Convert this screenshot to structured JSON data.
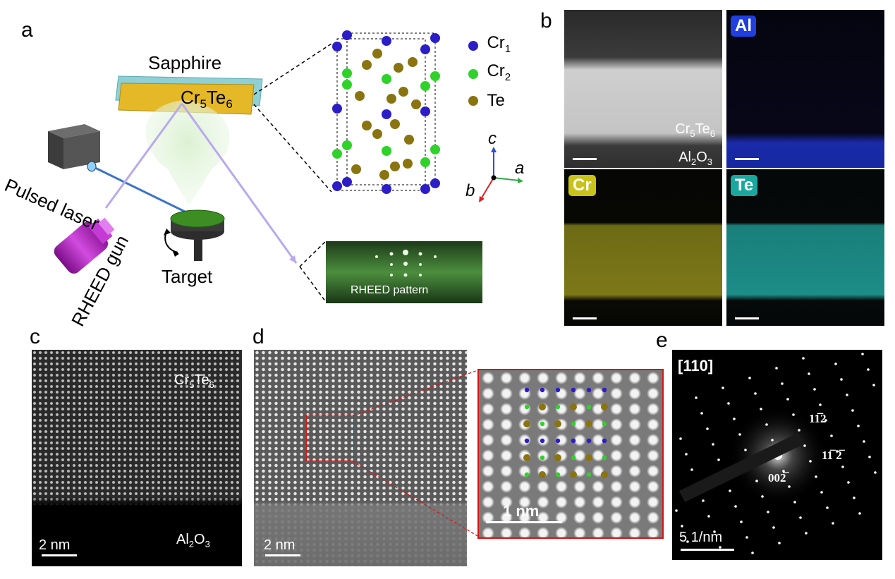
{
  "panel_labels": {
    "a": "a",
    "b": "b",
    "c": "c",
    "d": "d",
    "e": "e"
  },
  "panel_a": {
    "sapphire": "Sapphire",
    "film_main": "Cr",
    "film_sub1": "5",
    "film_mid": "Te",
    "film_sub2": "6",
    "pulsed_laser": "Pulsed laser",
    "rheed_gun": "RHEED gun",
    "target": "Target",
    "rheed_pattern": "RHEED pattern",
    "legend": [
      {
        "main": "Cr",
        "sub": "1",
        "color": "#2b1ec7"
      },
      {
        "main": "Cr",
        "sub": "2",
        "color": "#2fd22a"
      },
      {
        "main": "Te",
        "sub": "",
        "color": "#8a7410"
      }
    ],
    "axes": {
      "c": "c",
      "a": "a",
      "b": "b"
    }
  },
  "panel_b": {
    "film_main": "Cr",
    "film_sub": "5",
    "film_mid": "Te",
    "film_sub2": "6",
    "sub_main": "Al",
    "sub_sub": "2",
    "sub_mid": "O",
    "sub_sub2": "3",
    "maps": [
      {
        "label": "Al",
        "color": "#1f3fe0"
      },
      {
        "label": "Cr",
        "color": "#c8c21a"
      },
      {
        "label": "Te",
        "color": "#1aa7a0"
      }
    ]
  },
  "panel_c": {
    "film_main": "Cr",
    "film_sub": "5",
    "film_mid": "Te",
    "film_sub2": "6",
    "sub_main": "Al",
    "sub_sub": "2",
    "sub_mid": "O",
    "sub_sub2": "3",
    "scale": "2 nm"
  },
  "panel_d": {
    "scale": "2 nm",
    "inset_scale": "1 nm"
  },
  "panel_e": {
    "zone": "[110]",
    "spot1": "11̅2",
    "spot2": "11̅ 2̅",
    "spot3": "002̅",
    "scale": "5  1/nm"
  }
}
